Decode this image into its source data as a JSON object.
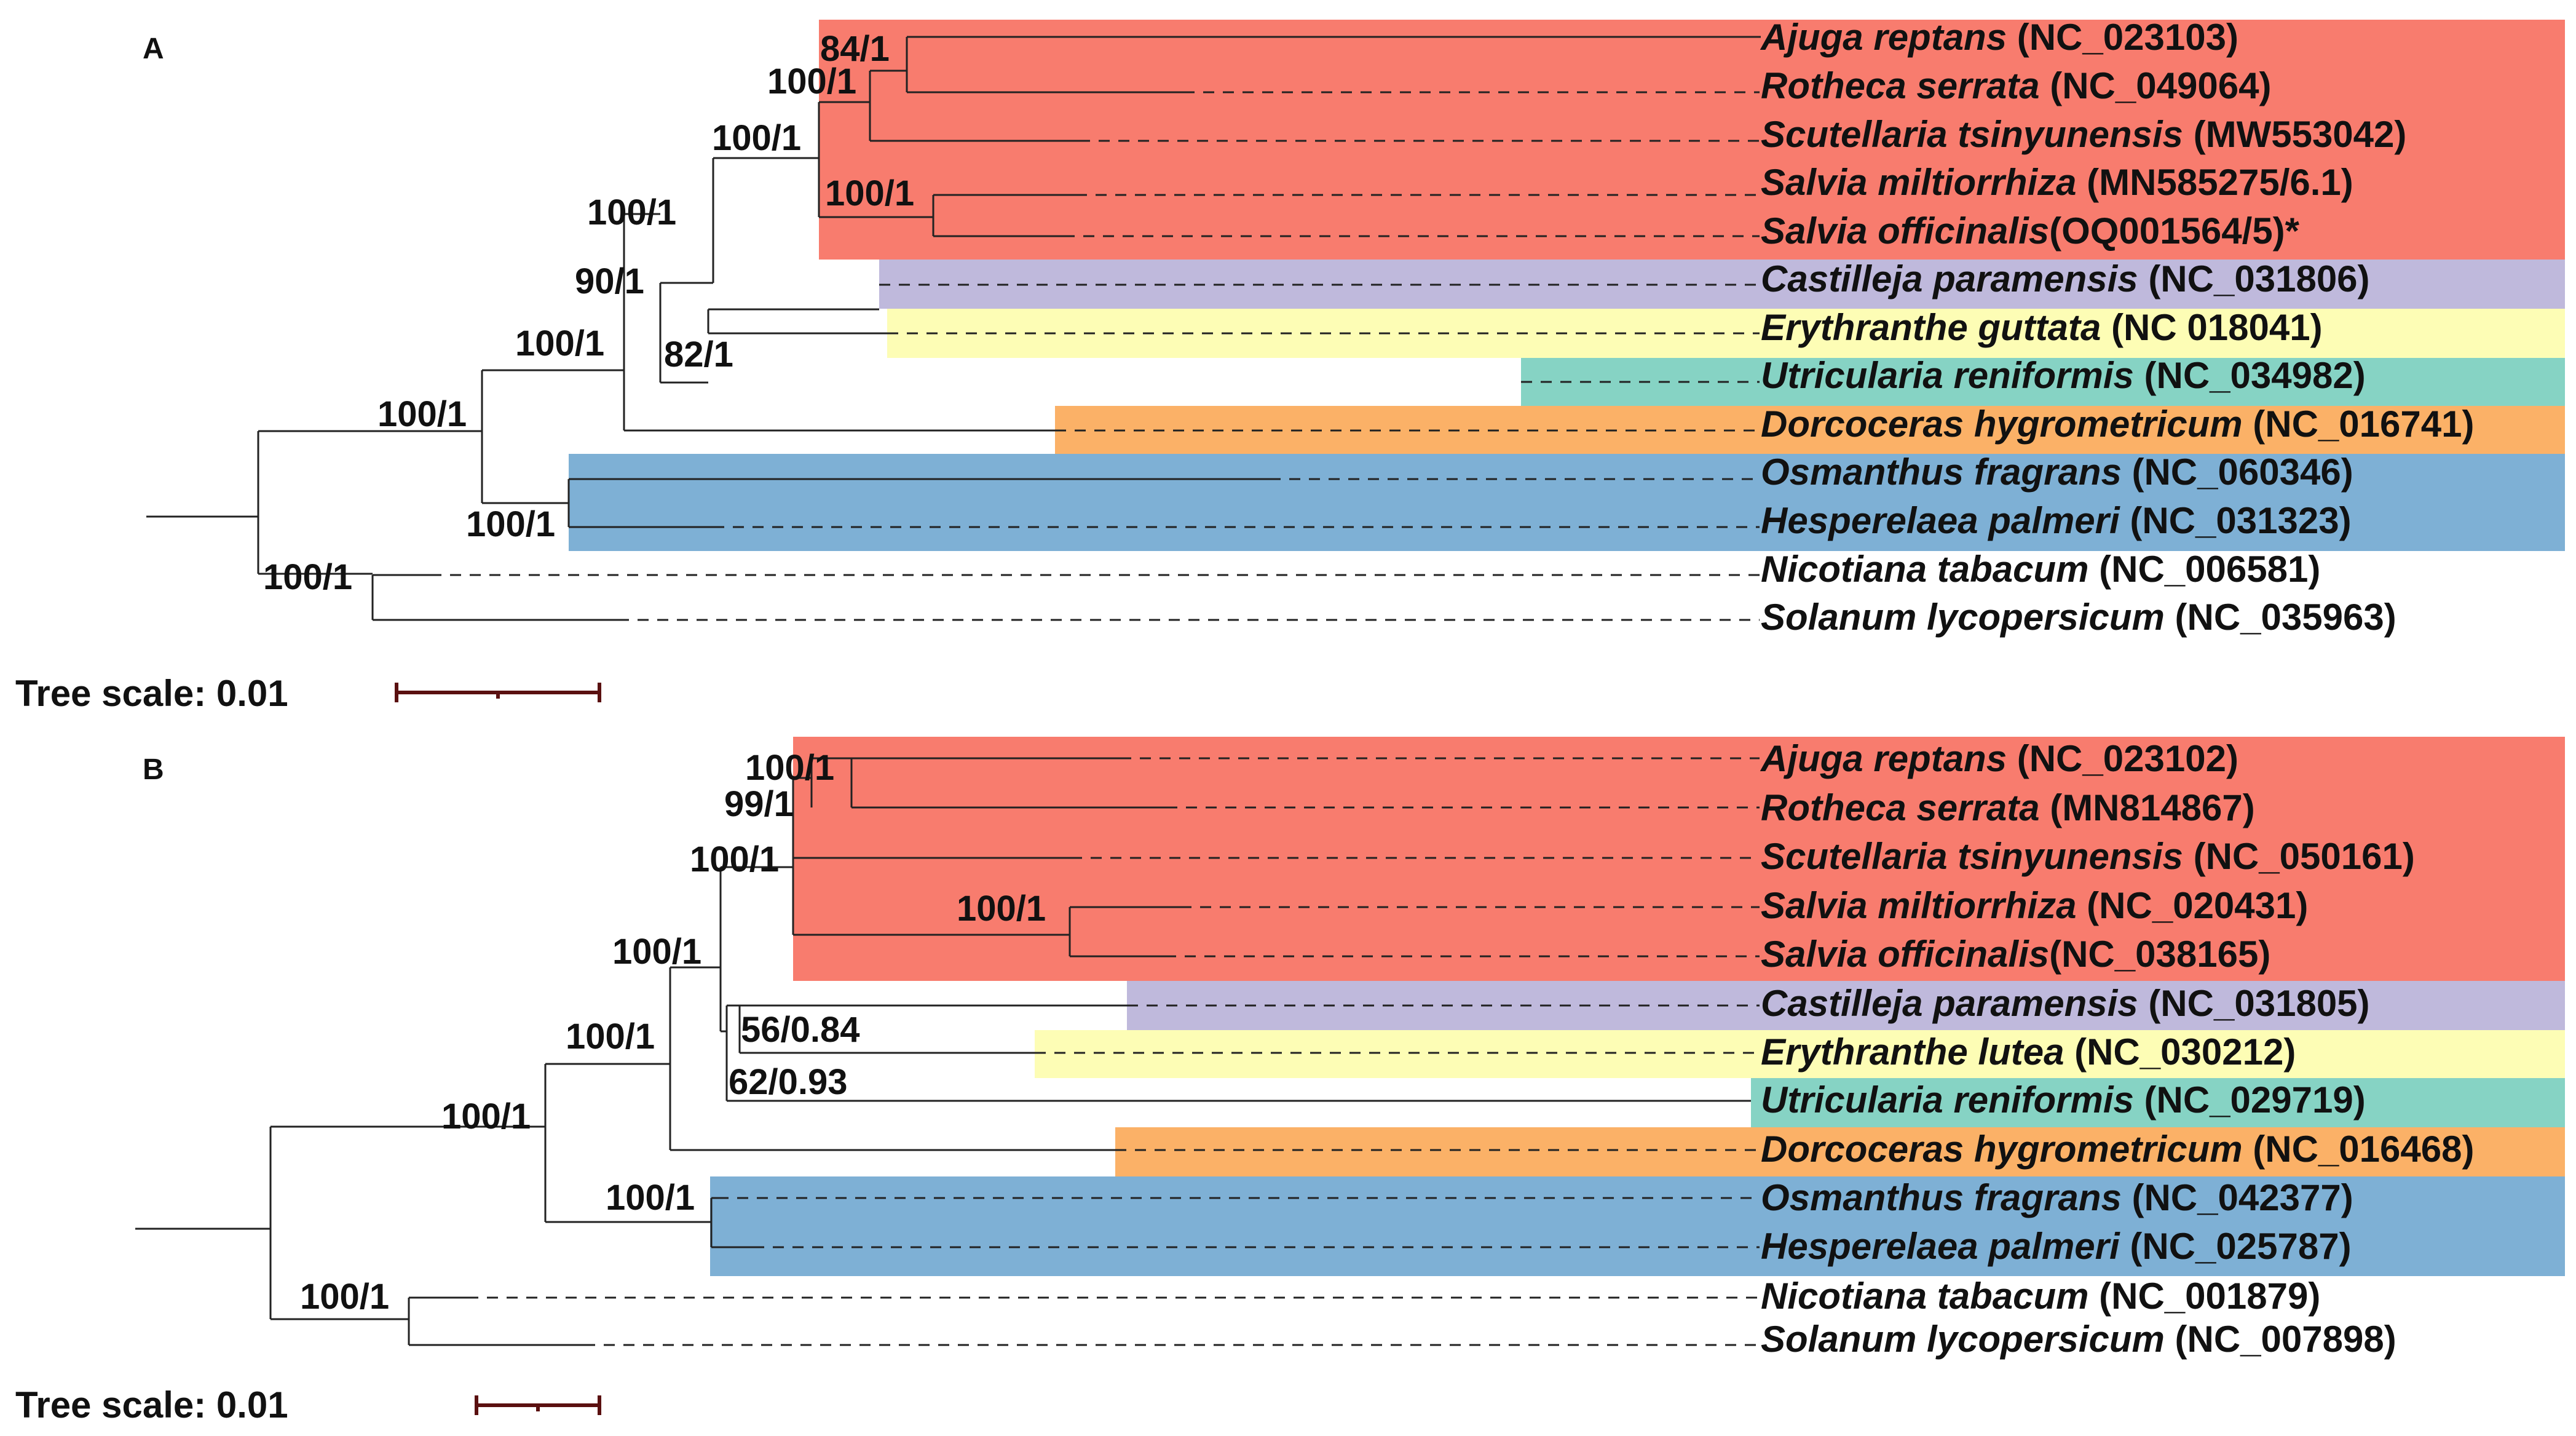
{
  "colors": {
    "lamiaceae": "#F87C6E",
    "orobanchaceae": "#BFB9DC",
    "phrymaceae": "#FDFDB5",
    "lentibulariaceae": "#86D3C4",
    "gesneriaceae": "#FBB167",
    "oleaceae": "#7EB0D5"
  },
  "panels": [
    {
      "letter": "A",
      "scale_label": "Tree scale: 0.01",
      "taxa": [
        {
          "species": "Ajuga reptans",
          "accession": " (NC_023103)",
          "clade": "lamiaceae"
        },
        {
          "species": "Rotheca serrata",
          "accession": " (NC_049064)",
          "clade": "lamiaceae"
        },
        {
          "species": "Scutellaria tsinyunensis",
          "accession": " (MW553042)",
          "clade": "lamiaceae"
        },
        {
          "species": "Salvia miltiorrhiza",
          "accession": " (MN585275/6.1)",
          "clade": "lamiaceae"
        },
        {
          "species": "Salvia officinalis",
          "accession": "(OQ001564/5)*",
          "clade": "lamiaceae"
        },
        {
          "species": "Castilleja paramensis",
          "accession": " (NC_031806)",
          "clade": "orobanchaceae"
        },
        {
          "species": "Erythranthe guttata",
          "accession": " (NC 018041)",
          "clade": "phrymaceae"
        },
        {
          "species": "Utricularia reniformis",
          "accession": " (NC_034982)",
          "clade": "lentibulariaceae"
        },
        {
          "species": "Dorcoceras hygrometricum",
          "accession": " (NC_016741)",
          "clade": "gesneriaceae"
        },
        {
          "species": "Osmanthus fragrans",
          "accession": " (NC_060346)",
          "clade": "oleaceae"
        },
        {
          "species": "Hesperelaea palmeri",
          "accession": " (NC_031323)",
          "clade": "oleaceae"
        },
        {
          "species": "Nicotiana tabacum",
          "accession": " (NC_006581)",
          "clade": "none"
        },
        {
          "species": "Solanum lycopersicum",
          "accession": " (NC_035963)",
          "clade": "none"
        }
      ],
      "supports": [
        "84/1",
        "100/1",
        "100/1",
        "100/1",
        "100/1",
        "90/1",
        "82/1",
        "100/1",
        "100/1",
        "100/1",
        "100/1"
      ]
    },
    {
      "letter": "B",
      "scale_label": "Tree scale: 0.01",
      "taxa": [
        {
          "species": "Ajuga reptans",
          "accession": " (NC_023102)",
          "clade": "lamiaceae"
        },
        {
          "species": "Rotheca serrata",
          "accession": " (MN814867)",
          "clade": "lamiaceae"
        },
        {
          "species": "Scutellaria tsinyunensis",
          "accession": " (NC_050161)",
          "clade": "lamiaceae"
        },
        {
          "species": "Salvia miltiorrhiza",
          "accession": " (NC_020431)",
          "clade": "lamiaceae"
        },
        {
          "species": "Salvia officinalis",
          "accession": "(NC_038165)",
          "clade": "lamiaceae"
        },
        {
          "species": "Castilleja paramensis",
          "accession": " (NC_031805)",
          "clade": "orobanchaceae"
        },
        {
          "species": "Erythranthe lutea",
          "accession": " (NC_030212)",
          "clade": "phrymaceae"
        },
        {
          "species": "Utricularia reniformis",
          "accession": " (NC_029719)",
          "clade": "lentibulariaceae"
        },
        {
          "species": "Dorcoceras hygrometricum",
          "accession": " (NC_016468)",
          "clade": "gesneriaceae"
        },
        {
          "species": "Osmanthus fragrans",
          "accession": " (NC_042377)",
          "clade": "oleaceae"
        },
        {
          "species": "Hesperelaea palmeri",
          "accession": " (NC_025787)",
          "clade": "oleaceae"
        },
        {
          "species": "Nicotiana tabacum",
          "accession": " (NC_001879)",
          "clade": "none"
        },
        {
          "species": "Solanum lycopersicum",
          "accession": " (NC_007898)",
          "clade": "none"
        }
      ],
      "supports": [
        "100/1",
        "99/1",
        "100/1",
        "100/1",
        "100/1",
        "56/0.84",
        "62/0.93",
        "100/1",
        "100/1",
        "100/1",
        "100/1"
      ]
    }
  ]
}
